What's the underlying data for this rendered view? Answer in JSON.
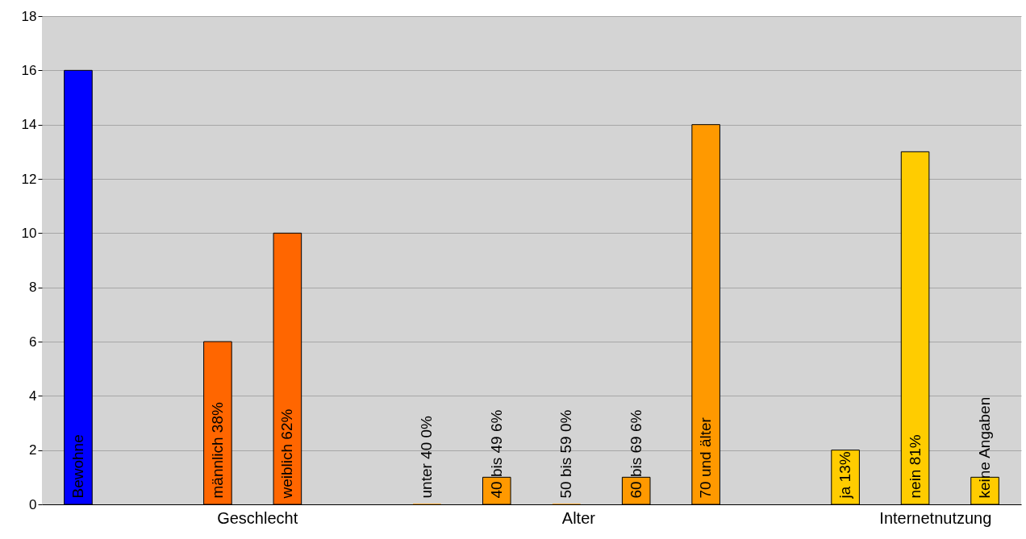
{
  "chart_data": {
    "type": "bar",
    "categories": [
      "Bewohne",
      null,
      "männlich  38%",
      "weiblich  62%",
      null,
      "unter 40  0%",
      "40 bis 49  6%",
      "50 bis 59  0%",
      "60 bis 69  6%",
      "70 und älter",
      null,
      "ja  13%",
      "nein  81%",
      "keine Angaben"
    ],
    "values": [
      16,
      null,
      6,
      10,
      null,
      0,
      1,
      0,
      1,
      14,
      null,
      2,
      13,
      1
    ],
    "colors": [
      "#0000ff",
      null,
      "#ff6600",
      "#ff6600",
      null,
      "#ff9900",
      "#ff9900",
      "#ff9900",
      "#ff9900",
      "#ff9900",
      null,
      "#ffcc00",
      "#ffcc00",
      "#ffcc00"
    ],
    "annotations": [
      "Geschlecht",
      "Alter",
      "Internetnutzung"
    ],
    "ylim": [
      0,
      18
    ],
    "yticks": [
      0,
      2,
      4,
      6,
      8,
      10,
      12,
      14,
      16,
      18
    ],
    "grid": "y"
  }
}
